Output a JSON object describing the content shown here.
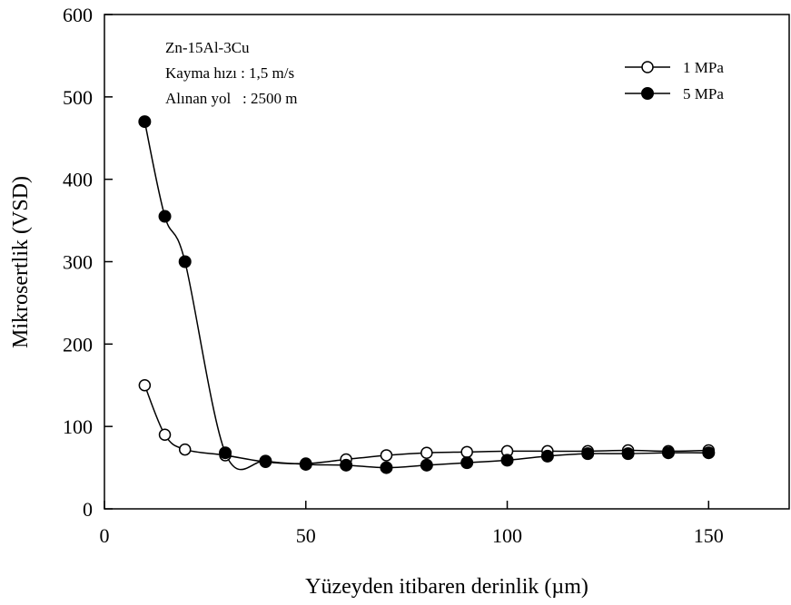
{
  "chart_data": {
    "type": "line",
    "xlabel": "Yüzeyden itibaren derinlik (µm)",
    "ylabel": "Mikrosertlik (VSD)",
    "xlim": [
      0,
      170
    ],
    "ylim": [
      0,
      600
    ],
    "xticks": [
      0,
      50,
      100,
      150
    ],
    "yticks": [
      0,
      100,
      200,
      300,
      400,
      500,
      600
    ],
    "grid": false,
    "legend_position": "top-right",
    "annotations": [
      "Zn-15Al-3Cu",
      "Kayma hızı : 1,5 m/s",
      "Alınan yol   : 2500 m"
    ],
    "series": [
      {
        "name": "1 MPa",
        "marker": "open-circle",
        "x": [
          10,
          15,
          20,
          30,
          40,
          50,
          60,
          70,
          80,
          90,
          100,
          110,
          120,
          130,
          140,
          150
        ],
        "y": [
          150,
          90,
          72,
          65,
          57,
          55,
          60,
          65,
          68,
          69,
          70,
          70,
          70,
          71,
          70,
          71
        ]
      },
      {
        "name": "5 MPa",
        "marker": "filled-circle",
        "x": [
          10,
          15,
          20,
          30,
          40,
          50,
          60,
          70,
          80,
          90,
          100,
          110,
          120,
          130,
          140,
          150
        ],
        "y": [
          470,
          355,
          300,
          68,
          58,
          54,
          53,
          50,
          53,
          56,
          59,
          64,
          67,
          67,
          68,
          68
        ]
      }
    ]
  }
}
